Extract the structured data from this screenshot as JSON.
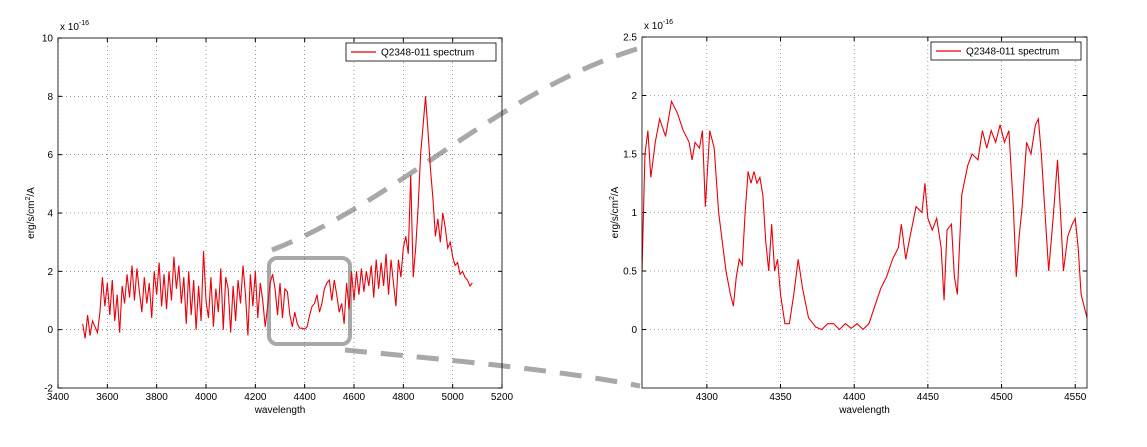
{
  "chart_data": [
    {
      "type": "line",
      "xlabel": "wavelength",
      "ylabel": [
        "erg/s/cm",
        "2",
        "/A"
      ],
      "multiplier": [
        "x 10",
        "-16"
      ],
      "x": [
        3500,
        3510,
        3520,
        3530,
        3540,
        3550,
        3560,
        3570,
        3580,
        3590,
        3600,
        3610,
        3620,
        3630,
        3640,
        3650,
        3660,
        3670,
        3680,
        3690,
        3700,
        3710,
        3720,
        3730,
        3740,
        3750,
        3760,
        3770,
        3780,
        3790,
        3800,
        3810,
        3820,
        3830,
        3840,
        3850,
        3860,
        3870,
        3880,
        3890,
        3900,
        3910,
        3920,
        3930,
        3940,
        3950,
        3960,
        3970,
        3980,
        3990,
        4000,
        4010,
        4020,
        4030,
        4040,
        4050,
        4060,
        4070,
        4080,
        4090,
        4100,
        4110,
        4120,
        4130,
        4140,
        4150,
        4160,
        4170,
        4180,
        4190,
        4200,
        4210,
        4220,
        4230,
        4240,
        4250,
        4260,
        4270,
        4280,
        4290,
        4300,
        4310,
        4320,
        4330,
        4340,
        4350,
        4360,
        4370,
        4380,
        4390,
        4400,
        4410,
        4420,
        4430,
        4440,
        4450,
        4460,
        4470,
        4480,
        4490,
        4500,
        4510,
        4520,
        4530,
        4540,
        4550,
        4560,
        4570,
        4580,
        4590,
        4600,
        4610,
        4620,
        4630,
        4640,
        4650,
        4660,
        4670,
        4680,
        4690,
        4700,
        4710,
        4720,
        4730,
        4740,
        4750,
        4760,
        4770,
        4780,
        4790,
        4800,
        4810,
        4820,
        4830,
        4840,
        4850,
        4860,
        4870,
        4880,
        4890,
        4900,
        4910,
        4920,
        4930,
        4940,
        4950,
        4960,
        4970,
        4980,
        4990,
        5000,
        5010,
        5020,
        5030,
        5040,
        5050,
        5060,
        5070,
        5080
      ],
      "series": [
        {
          "name": "Q2348-011 spectrum",
          "color": "#e8000b",
          "values": [
            0.2,
            -0.3,
            0.5,
            -0.2,
            0.3,
            0.1,
            -0.1,
            0.6,
            1.8,
            0.8,
            1.6,
            0.5,
            1.7,
            0.3,
            1.2,
            -0.1,
            1.5,
            0.9,
            1.9,
            1.1,
            2.2,
            1.0,
            2.1,
            1.3,
            0.6,
            1.8,
            0.9,
            1.6,
            0.4,
            2.0,
            1.2,
            2.3,
            0.8,
            1.9,
            0.7,
            2.0,
            1.0,
            2.5,
            1.4,
            2.2,
            0.9,
            1.8,
            0.2,
            2.0,
            0.5,
            1.7,
            0.0,
            1.5,
            0.3,
            2.7,
            1.0,
            0.4,
            1.8,
            0.1,
            1.4,
            0.6,
            2.1,
            0.0,
            1.8,
            1.4,
            -0.1,
            1.5,
            0.3,
            1.7,
            0.9,
            2.2,
            1.2,
            -0.2,
            1.9,
            0.8,
            2.0,
            0.4,
            1.6,
            1.0,
            0.1,
            0.8,
            1.6,
            1.9,
            1.4,
            0.5,
            1.6,
            0.4,
            1.4,
            1.3,
            0.5,
            0.1,
            0.6,
            0.2,
            0.05,
            0.05,
            0.02,
            0.1,
            0.5,
            0.8,
            0.9,
            1.2,
            0.6,
            0.9,
            1.4,
            1.6,
            1.7,
            1.0,
            1.7,
            1.2,
            0.6,
            0.9,
            0.2,
            1.6,
            0.7,
            2.0,
            1.0,
            2.0,
            1.2,
            2.1,
            1.3,
            2.0,
            1.5,
            2.2,
            1.1,
            2.4,
            1.4,
            2.3,
            1.5,
            2.6,
            1.2,
            2.4,
            1.6,
            0.8,
            2.4,
            1.8,
            2.8,
            3.2,
            2.6,
            5.3,
            1.8,
            2.8,
            4.2,
            6.0,
            7.0,
            8.0,
            6.8,
            5.5,
            4.5,
            3.2,
            3.8,
            3.0,
            4.0,
            3.5,
            2.8,
            3.0,
            2.5,
            2.2,
            2.3,
            1.9,
            2.0,
            1.8,
            1.7,
            1.5,
            1.6
          ]
        }
      ],
      "xlim": [
        3400,
        5200
      ],
      "ylim": [
        -2,
        10
      ],
      "xticks": [
        3400,
        3600,
        3800,
        4000,
        4200,
        4400,
        4600,
        4800,
        5000,
        5200
      ],
      "yticks": [
        -2,
        0,
        2,
        4,
        6,
        8,
        10
      ],
      "grid": true,
      "legend": "upper right"
    },
    {
      "type": "line",
      "xlabel": "wavelength",
      "ylabel": [
        "erg/s/cm",
        "2",
        "/A"
      ],
      "multiplier": [
        "x 10",
        "-16"
      ],
      "x": [
        4256,
        4258,
        4260,
        4262,
        4265,
        4268,
        4272,
        4276,
        4280,
        4284,
        4288,
        4290,
        4292,
        4295,
        4297,
        4299,
        4302,
        4305,
        4308,
        4311,
        4313,
        4316,
        4318,
        4320,
        4322,
        4324,
        4326,
        4328,
        4330,
        4332,
        4334,
        4336,
        4338,
        4340,
        4342,
        4344,
        4346,
        4348,
        4350,
        4353,
        4356,
        4359,
        4362,
        4365,
        4369,
        4374,
        4378,
        4382,
        4386,
        4390,
        4394,
        4398,
        4402,
        4406,
        4410,
        4414,
        4418,
        4422,
        4426,
        4430,
        4432,
        4435,
        4438,
        4442,
        4446,
        4448,
        4450,
        4453,
        4456,
        4459,
        4461,
        4463,
        4466,
        4468,
        4470,
        4473,
        4477,
        4480,
        4484,
        4487,
        4490,
        4493,
        4496,
        4499,
        4502,
        4505,
        4508,
        4510,
        4512,
        4514,
        4517,
        4520,
        4523,
        4525,
        4527,
        4530,
        4532,
        4535,
        4538,
        4540,
        4542,
        4545,
        4548,
        4550,
        4552,
        4554,
        4558
      ],
      "series": [
        {
          "name": "Q2348-011 spectrum",
          "color": "#e8000b",
          "values": [
            0.5,
            1.5,
            1.7,
            1.3,
            1.6,
            1.8,
            1.65,
            1.95,
            1.85,
            1.7,
            1.6,
            1.45,
            1.6,
            1.55,
            1.7,
            1.05,
            1.7,
            1.55,
            1.0,
            0.7,
            0.5,
            0.3,
            0.2,
            0.45,
            0.6,
            0.55,
            1.0,
            1.35,
            1.25,
            1.35,
            1.25,
            1.3,
            1.15,
            0.75,
            0.5,
            0.9,
            0.5,
            0.6,
            0.3,
            0.05,
            0.05,
            0.3,
            0.6,
            0.35,
            0.1,
            0.02,
            0.0,
            0.05,
            0.05,
            0.0,
            0.05,
            0.01,
            0.05,
            0.0,
            0.05,
            0.2,
            0.35,
            0.45,
            0.6,
            0.7,
            0.9,
            0.6,
            0.8,
            1.05,
            1.0,
            1.25,
            0.95,
            0.85,
            0.95,
            0.7,
            0.25,
            0.85,
            0.9,
            0.45,
            0.3,
            1.15,
            1.4,
            1.5,
            1.45,
            1.7,
            1.55,
            1.7,
            1.6,
            1.75,
            1.6,
            1.7,
            1.05,
            0.45,
            0.8,
            1.05,
            1.6,
            1.5,
            1.75,
            1.8,
            1.5,
            0.9,
            0.5,
            0.95,
            1.45,
            1.0,
            0.5,
            0.8,
            0.9,
            0.95,
            0.7,
            0.3,
            0.1
          ]
        }
      ],
      "xlim": [
        4256,
        4558
      ],
      "ylim": [
        -0.5,
        2.5
      ],
      "xticks": [
        4300,
        4350,
        4400,
        4450,
        4500,
        4550
      ],
      "yticks": [
        0,
        0.5,
        1,
        1.5,
        2,
        2.5
      ],
      "grid": true,
      "legend": "upper right"
    }
  ]
}
